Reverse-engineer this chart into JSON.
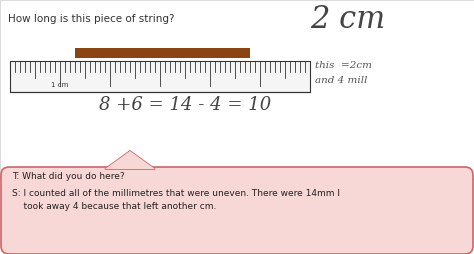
{
  "bg_color": "#ffffff",
  "question_text": "How long is this piece of string?",
  "answer_large": "2 cm",
  "answer_side1": "this  =2cm",
  "answer_side2": "and 4 mill",
  "equation_text": "8 +6 = 14 - 4 = 10",
  "bubble_text_t": "T: What did you do here?",
  "bubble_text_s": "S: I counted all of the millimetres that were uneven. There were 14mm I\n    took away 4 because that left another cm.",
  "string_color": "#8B4513",
  "ruler_color": "#333333",
  "bubble_fill": "#f8d7d7",
  "bubble_border": "#cc6666",
  "upper_bg": "#ffffff",
  "lower_bg": "#f5e8e8"
}
